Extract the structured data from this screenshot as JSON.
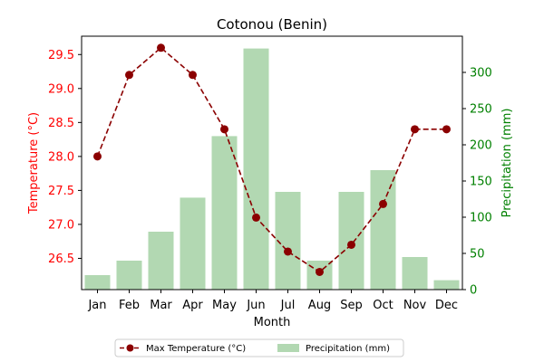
{
  "chart_data": {
    "type": "bar",
    "title": "Cotonou (Benin)",
    "xlabel": "Month",
    "categories": [
      "Jan",
      "Feb",
      "Mar",
      "Apr",
      "May",
      "Jun",
      "Jul",
      "Aug",
      "Sep",
      "Oct",
      "Nov",
      "Dec"
    ],
    "series": [
      {
        "name": "Max Temperature (°C)",
        "type": "line",
        "axis": "left",
        "color": "#8b0000",
        "values": [
          28.0,
          29.2,
          29.6,
          29.2,
          28.4,
          27.1,
          26.6,
          26.3,
          26.7,
          27.3,
          28.4,
          28.4
        ]
      },
      {
        "name": "Precipitation (mm)",
        "type": "bar",
        "axis": "right",
        "color": "#b2d8b2",
        "values": [
          20,
          40,
          80,
          127,
          212,
          333,
          135,
          40,
          135,
          165,
          45,
          13
        ]
      }
    ],
    "y_left": {
      "label": "Temperature (°C)",
      "color": "#ff0000",
      "ylim": [
        26.04,
        29.77
      ],
      "ticks": [
        26.5,
        27.0,
        27.5,
        28.0,
        28.5,
        29.0,
        29.5
      ],
      "tick_labels": [
        "26.5",
        "27.0",
        "27.5",
        "28.0",
        "28.5",
        "29.0",
        "29.5"
      ]
    },
    "y_right": {
      "label": "Precipitation (mm)",
      "color": "#008000",
      "ylim": [
        0,
        350
      ],
      "ticks": [
        0,
        50,
        100,
        150,
        200,
        250,
        300
      ],
      "tick_labels": [
        "0",
        "50",
        "100",
        "150",
        "200",
        "250",
        "300"
      ]
    },
    "legend_position": "bottom-center",
    "grid": false
  }
}
